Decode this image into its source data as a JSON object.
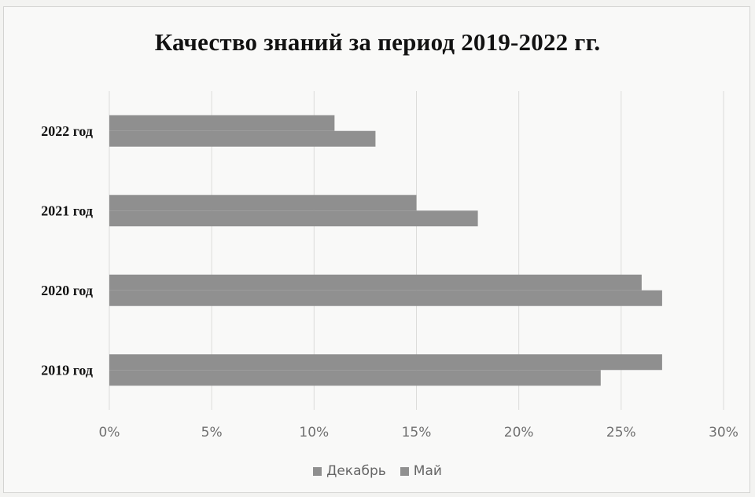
{
  "chart_data": {
    "type": "bar",
    "orientation": "horizontal",
    "title": "Качество знаний за период 2019-2022 гг.",
    "categories": [
      "2019 год",
      "2020 год",
      "2021 год",
      "2022 год"
    ],
    "series": [
      {
        "name": "Декабрь",
        "values": [
          27,
          26,
          15,
          11
        ],
        "color": "#8f8f8f"
      },
      {
        "name": "Май",
        "values": [
          24,
          27,
          18,
          13
        ],
        "color": "#909090"
      }
    ],
    "x_ticks": [
      "0%",
      "5%",
      "10%",
      "15%",
      "20%",
      "25%",
      "30%"
    ],
    "xlim": [
      0,
      30
    ],
    "xunit": "%",
    "grid": true,
    "legend": "bottom"
  }
}
